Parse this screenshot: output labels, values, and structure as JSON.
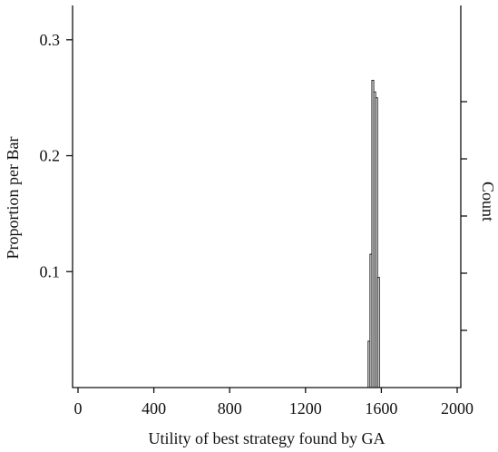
{
  "chart_data": {
    "type": "bar",
    "subtype": "histogram",
    "title": "",
    "xlabel": "Utility of best strategy found by GA",
    "ylabel": "Proportion per Bar",
    "ylabel_right": "Count",
    "xlim": [
      0,
      2000
    ],
    "ylim": [
      0,
      0.33
    ],
    "x_ticks": [
      "0",
      "400",
      "800",
      "1200",
      "1600",
      "2000"
    ],
    "y_ticks": [
      "0.1",
      "0.2",
      "0.3"
    ],
    "right_axis_tick_count": 5,
    "grid": false,
    "legend": "none",
    "bins": [
      {
        "x0": 1530,
        "x1": 1540,
        "value": 0.04
      },
      {
        "x0": 1540,
        "x1": 1550,
        "value": 0.115
      },
      {
        "x0": 1550,
        "x1": 1560,
        "value": 0.265
      },
      {
        "x0": 1560,
        "x1": 1570,
        "value": 0.255
      },
      {
        "x0": 1570,
        "x1": 1580,
        "value": 0.25
      },
      {
        "x0": 1580,
        "x1": 1590,
        "value": 0.095
      }
    ]
  }
}
